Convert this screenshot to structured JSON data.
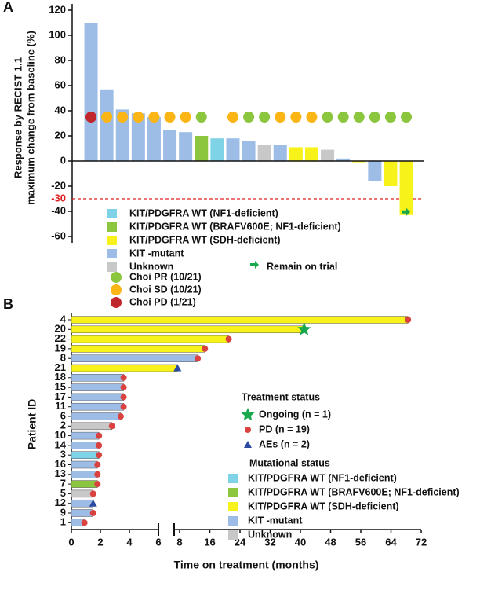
{
  "chart_data": [
    {
      "type": "waterfall",
      "panel": "A",
      "ylabel": [
        "Response by RECIST 1.1",
        "maximum change from baseline (%)"
      ],
      "values": [
        110,
        57,
        41,
        38,
        35,
        25,
        23,
        20,
        18,
        18,
        16,
        13,
        13,
        11,
        11,
        9,
        2,
        -1,
        -16,
        -20,
        -43
      ],
      "colors": [
        "#9dbde6",
        "#9dbde6",
        "#9dbde6",
        "#9dbde6",
        "#9dbde6",
        "#9dbde6",
        "#9dbde6",
        "#8cc63f",
        "#7fd3e6",
        "#9dbde6",
        "#9dbde6",
        "#c8c8c8",
        "#9dbde6",
        "#f7f21a",
        "#f7f21a",
        "#c8c8c8",
        "#9dbde6",
        "#f7f21a",
        "#9dbde6",
        "#f7f21a",
        "#f7f21a"
      ],
      "choi_value": 35,
      "choi_colors": [
        "#c0272d",
        "#fbb514",
        "#fbb514",
        "#fbb514",
        "#fbb514",
        "#fbb514",
        "#fbb514",
        "#8cc63f",
        null,
        "#fbb514",
        "#8cc63f",
        "#8cc63f",
        "#fbb514",
        "#fbb514",
        "#fbb514",
        "#8cc63f",
        "#8cc63f",
        "#8cc63f",
        "#8cc63f",
        "#8cc63f",
        "#8cc63f"
      ],
      "remain_on_trial": [
        false,
        false,
        false,
        false,
        false,
        false,
        false,
        false,
        false,
        false,
        false,
        false,
        false,
        false,
        false,
        false,
        false,
        false,
        false,
        false,
        true
      ],
      "remain_on_trial_label": "Remain on trial",
      "remain_on_trial_color": "#1aa84f",
      "ylim": [
        -65,
        125
      ],
      "yticks": [
        -60,
        -40,
        -20,
        0,
        20,
        40,
        60,
        80,
        100,
        120
      ],
      "reference_line": -30,
      "reference_color": "#e02020",
      "legend": [
        {
          "name": "KIT/PDGFRA WT (NF1-deficient)",
          "color": "#7fd3e6"
        },
        {
          "name": "KIT/PDGFRA WT (BRAFV600E; NF1-deficient)",
          "color": "#8cc63f"
        },
        {
          "name": "KIT/PDGFRA WT (SDH-deficient)",
          "color": "#f7f21a"
        },
        {
          "name": "KIT -mutant",
          "color": "#9dbde6"
        },
        {
          "name": "Unknown",
          "color": "#c8c8c8"
        }
      ],
      "choi_legend": [
        {
          "name": "Choi PR (10/21)",
          "color": "#8cc63f"
        },
        {
          "name": "Choi SD (10/21)",
          "color": "#fbb514"
        },
        {
          "name": "Choi PD (1/21)",
          "color": "#c0272d"
        }
      ]
    },
    {
      "type": "swimmer",
      "panel": "B",
      "ylabel": "Patient ID",
      "xlabel": "Time on treatment (months)",
      "categories": [
        "4",
        "20",
        "22",
        "19",
        "8",
        "21",
        "18",
        "15",
        "17",
        "11",
        "6",
        "2",
        "10",
        "14",
        "3",
        "16",
        "13",
        "7",
        "5",
        "12",
        "9",
        "1"
      ],
      "values": [
        68.5,
        41,
        21,
        14.7,
        12.8,
        7.8,
        3.6,
        3.6,
        3.6,
        3.6,
        3.4,
        2.8,
        1.9,
        1.9,
        1.9,
        1.8,
        1.8,
        1.8,
        1.5,
        1.5,
        1.5,
        0.9
      ],
      "colors": [
        "#f7f21a",
        "#f7f21a",
        "#f7f21a",
        "#f7f21a",
        "#9dbde6",
        "#f7f21a",
        "#9dbde6",
        "#9dbde6",
        "#9dbde6",
        "#9dbde6",
        "#9dbde6",
        "#c8c8c8",
        "#9dbde6",
        "#9dbde6",
        "#7fd3e6",
        "#9dbde6",
        "#9dbde6",
        "#8cc63f",
        "#c8c8c8",
        "#9dbde6",
        "#9dbde6",
        "#9dbde6"
      ],
      "status": [
        1,
        0,
        1,
        1,
        1,
        2,
        1,
        1,
        1,
        1,
        1,
        1,
        1,
        1,
        1,
        1,
        1,
        1,
        1,
        2,
        1,
        1
      ],
      "xlim": [
        0,
        72
      ],
      "xsegments": [
        [
          0,
          6
        ],
        [
          8,
          72
        ]
      ],
      "xticks": [
        0,
        2,
        4,
        6,
        8,
        16,
        24,
        32,
        40,
        48,
        56,
        64,
        72
      ],
      "status_title": "Treatment status",
      "status_legend": [
        {
          "name": "Ongoing (n = 1)",
          "color": "#1aa84f",
          "shape": "star"
        },
        {
          "name": "PD (n = 19)",
          "color": "#d9423f",
          "shape": "circle"
        },
        {
          "name": "AEs (n = 2)",
          "color": "#2b4aa0",
          "shape": "triangle"
        }
      ],
      "legend_title": "Mutational status",
      "legend": [
        {
          "name": "KIT/PDGFRA WT (NF1-deficient)",
          "color": "#7fd3e6"
        },
        {
          "name": "KIT/PDGFRA WT (BRAFV600E; NF1-deficient)",
          "color": "#8cc63f"
        },
        {
          "name": "KIT/PDGFRA WT (SDH-deficient)",
          "color": "#f7f21a"
        },
        {
          "name": "KIT -mutant",
          "color": "#9dbde6"
        },
        {
          "name": "Unknown",
          "color": "#c8c8c8"
        }
      ]
    }
  ]
}
